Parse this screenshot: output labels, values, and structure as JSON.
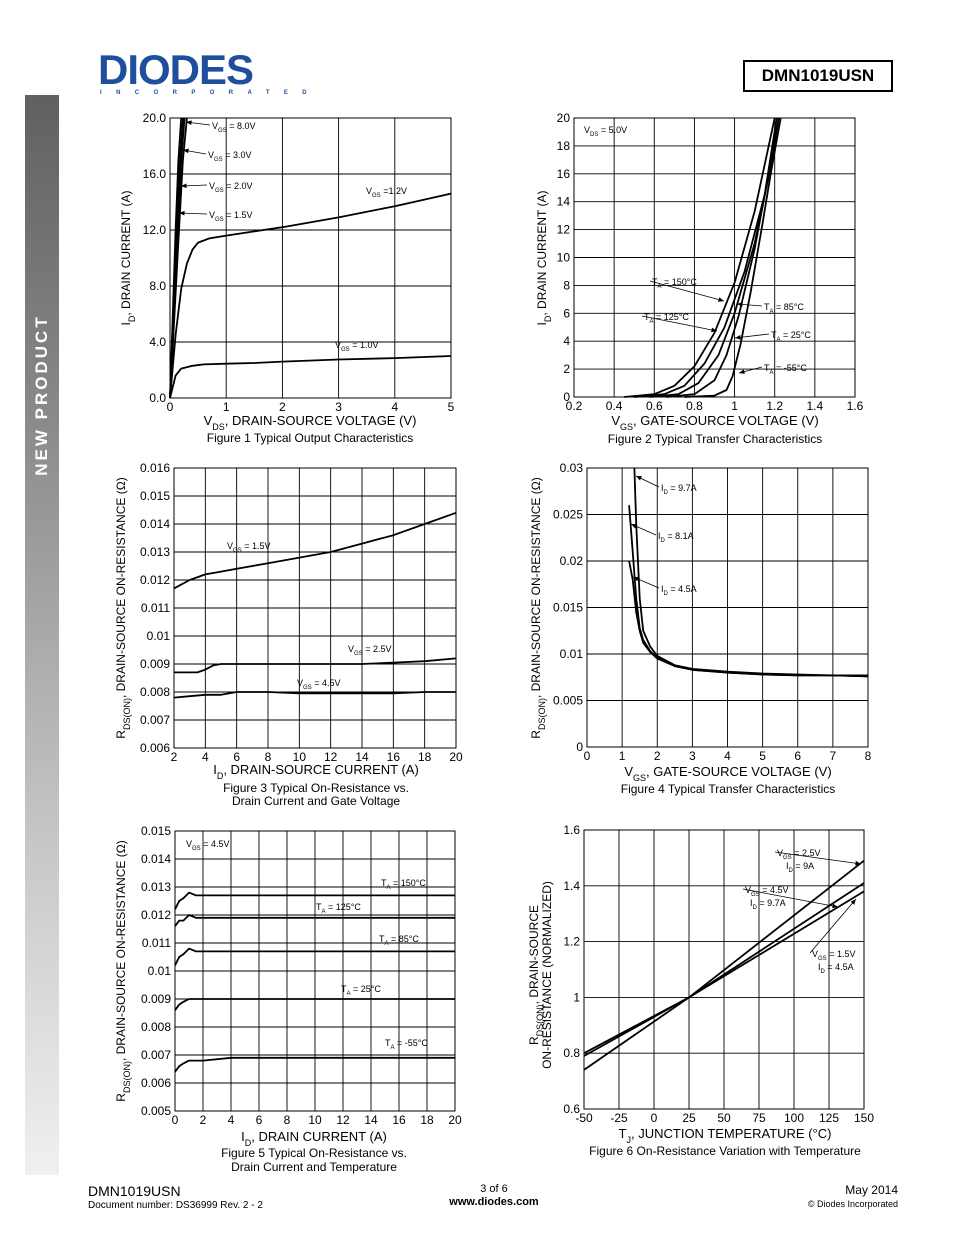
{
  "header": {
    "logo_text": "DIODES",
    "logo_sub": "INCORPORATED",
    "part_number": "DMN1019USN"
  },
  "sidebar": {
    "label": "NEW PRODUCT"
  },
  "colors": {
    "brand": "#1f4e9c",
    "ink": "#000000"
  },
  "chart_data": [
    {
      "id": "fig1",
      "type": "line",
      "title": "Figure 1 Typical Output Characteristics",
      "xlabel": "V_DS, DRAIN-SOURCE VOLTAGE (V)",
      "ylabel": "I_D, DRAIN CURRENT (A)",
      "xlim": [
        0,
        5
      ],
      "ylim": [
        0,
        20
      ],
      "xticks": [
        "0",
        "1",
        "2",
        "3",
        "4",
        "5"
      ],
      "yticks": [
        "0.0",
        "4.0",
        "8.0",
        "12.0",
        "16.0",
        "20.0"
      ],
      "series": [
        {
          "name": "V_GS = 8.0V",
          "x": [
            0,
            0.05,
            0.1,
            0.15,
            0.2
          ],
          "y": [
            0,
            6,
            12,
            17,
            20
          ]
        },
        {
          "name": "V_GS = 3.0V",
          "x": [
            0,
            0.06,
            0.12,
            0.18,
            0.23
          ],
          "y": [
            0,
            6,
            12,
            17,
            20
          ]
        },
        {
          "name": "V_GS = 2.0V",
          "x": [
            0,
            0.07,
            0.14,
            0.2,
            0.26
          ],
          "y": [
            0,
            6,
            12,
            17,
            20
          ]
        },
        {
          "name": "V_GS = 1.5V",
          "x": [
            0,
            0.08,
            0.16,
            0.23,
            0.3
          ],
          "y": [
            0,
            6,
            12,
            17,
            20
          ]
        },
        {
          "name": "V_GS =1.2V",
          "x": [
            0,
            0.1,
            0.2,
            0.3,
            0.4,
            0.5,
            0.7,
            1,
            1.5,
            2,
            3,
            4,
            5
          ],
          "y": [
            0,
            4.5,
            7.8,
            9.6,
            10.6,
            11.1,
            11.4,
            11.6,
            11.9,
            12.2,
            12.9,
            13.7,
            14.6
          ]
        },
        {
          "name": "V_GS = 1.0V",
          "x": [
            0,
            0.1,
            0.2,
            0.4,
            0.6,
            1,
            1.5,
            2,
            3,
            4,
            5
          ],
          "y": [
            0,
            1.6,
            2.1,
            2.3,
            2.4,
            2.45,
            2.5,
            2.6,
            2.75,
            2.85,
            3.0
          ]
        }
      ]
    },
    {
      "id": "fig2",
      "type": "line",
      "title": "Figure 2 Typical Transfer Characteristics",
      "xlabel": "V_GS, GATE-SOURCE VOLTAGE (V)",
      "ylabel": "I_D, DRAIN CURRENT (A)",
      "annotation": "V_DS = 5.0V",
      "xlim": [
        0.2,
        1.6
      ],
      "ylim": [
        0,
        20
      ],
      "xticks": [
        "0.2",
        "0.4",
        "0.6",
        "0.8",
        "1",
        "1.2",
        "1.4",
        "1.6"
      ],
      "yticks": [
        "0",
        "2",
        "4",
        "6",
        "8",
        "10",
        "12",
        "14",
        "16",
        "18",
        "20"
      ],
      "series": [
        {
          "name": "T_A = 150°C",
          "x": [
            0.45,
            0.6,
            0.7,
            0.8,
            0.9,
            1.0,
            1.1,
            1.2
          ],
          "y": [
            0,
            0.2,
            0.8,
            2.2,
            4.6,
            8.2,
            13.3,
            20
          ]
        },
        {
          "name": "T_A = 125°C",
          "x": [
            0.5,
            0.65,
            0.75,
            0.85,
            0.95,
            1.05,
            1.15,
            1.21
          ],
          "y": [
            0,
            0.2,
            0.8,
            2.4,
            5.0,
            9.0,
            14.5,
            20
          ]
        },
        {
          "name": "T_A = 85°C",
          "x": [
            0.58,
            0.72,
            0.82,
            0.92,
            1.0,
            1.1,
            1.18,
            1.22
          ],
          "y": [
            0,
            0.2,
            1.0,
            3.0,
            6.0,
            11.0,
            16.5,
            20
          ]
        },
        {
          "name": "T_A = 25°C",
          "x": [
            0.66,
            0.8,
            0.9,
            0.96,
            1.02,
            1.1,
            1.17,
            1.22
          ],
          "y": [
            0,
            0.2,
            1.2,
            3.0,
            5.8,
            10.6,
            16.0,
            20
          ]
        },
        {
          "name": "T_A = -55°C",
          "x": [
            0.75,
            0.9,
            0.96,
            0.99,
            1.03,
            1.08,
            1.14,
            1.18,
            1.23
          ],
          "y": [
            0,
            0.1,
            0.5,
            1.5,
            3.8,
            7.5,
            12.5,
            16.0,
            20
          ]
        }
      ]
    },
    {
      "id": "fig3",
      "type": "line",
      "title": "Figure 3 Typical On-Resistance vs.",
      "title2": "Drain Current and Gate Voltage",
      "xlabel": "I_D, DRAIN-SOURCE CURRENT (A)",
      "ylabel": "R_DS(ON), DRAIN-SOURCE ON-RESISTANCE (Ω)",
      "xlim": [
        2,
        20
      ],
      "ylim": [
        0.006,
        0.016
      ],
      "xticks": [
        "2",
        "4",
        "6",
        "8",
        "10",
        "12",
        "14",
        "16",
        "18",
        "20"
      ],
      "yticks": [
        "0.006",
        "0.007",
        "0.008",
        "0.009",
        "0.01",
        "0.011",
        "0.012",
        "0.013",
        "0.014",
        "0.015",
        "0.016"
      ],
      "series": [
        {
          "name": "V_GS = 1.5V",
          "x": [
            2,
            3,
            4,
            5,
            6,
            8,
            10,
            12,
            14,
            16,
            18,
            20
          ],
          "y": [
            0.0117,
            0.012,
            0.0122,
            0.0123,
            0.0124,
            0.0126,
            0.0128,
            0.013,
            0.0133,
            0.0136,
            0.014,
            0.0144
          ]
        },
        {
          "name": "V_GS = 2.5V",
          "x": [
            2,
            3,
            3.5,
            4,
            4.5,
            5,
            6,
            8,
            10,
            12,
            14,
            16,
            18,
            20
          ],
          "y": [
            0.0087,
            0.0087,
            0.0087,
            0.0088,
            0.00895,
            0.009,
            0.009,
            0.009,
            0.009,
            0.009,
            0.009,
            0.00905,
            0.0091,
            0.0092
          ]
        },
        {
          "name": "V_GS = 4.5V",
          "x": [
            2,
            3,
            4,
            5,
            6,
            8,
            10,
            12,
            14,
            16,
            18,
            20
          ],
          "y": [
            0.0078,
            0.00785,
            0.0079,
            0.0079,
            0.008,
            0.008,
            0.00795,
            0.00795,
            0.00795,
            0.00795,
            0.008,
            0.008
          ]
        }
      ]
    },
    {
      "id": "fig4",
      "type": "line",
      "title": "Figure 4 Typical Transfer Characteristics",
      "xlabel": "V_GS, GATE-SOURCE VOLTAGE (V)",
      "ylabel": "R_DS(ON), DRAIN-SOURCE ON-RESISTANCE (Ω)",
      "xlim": [
        0,
        8
      ],
      "ylim": [
        0,
        0.03
      ],
      "xticks": [
        "0",
        "1",
        "2",
        "3",
        "4",
        "5",
        "6",
        "7",
        "8"
      ],
      "yticks": [
        "0",
        "0.005",
        "0.01",
        "0.015",
        "0.02",
        "0.025",
        "0.03"
      ],
      "series": [
        {
          "name": "I_D = 9.7A",
          "x": [
            1.35,
            1.4,
            1.5,
            1.6,
            1.8,
            2.0,
            2.5,
            3,
            4,
            5,
            6,
            7,
            8
          ],
          "y": [
            0.03,
            0.024,
            0.016,
            0.0125,
            0.0108,
            0.0098,
            0.0088,
            0.0084,
            0.0081,
            0.0079,
            0.0078,
            0.0077,
            0.0077
          ]
        },
        {
          "name": "I_D = 8.1A",
          "x": [
            1.2,
            1.3,
            1.4,
            1.5,
            1.6,
            1.8,
            2.0,
            2.5,
            3,
            4,
            5,
            6,
            7,
            8
          ],
          "y": [
            0.026,
            0.021,
            0.016,
            0.0128,
            0.0115,
            0.0103,
            0.0096,
            0.0087,
            0.0083,
            0.008,
            0.0078,
            0.0077,
            0.0077,
            0.0076
          ]
        },
        {
          "name": "I_D = 4.5A",
          "x": [
            1.2,
            1.3,
            1.4,
            1.5,
            1.6,
            1.8,
            2.0,
            2.5,
            3,
            4,
            5,
            6,
            7,
            8
          ],
          "y": [
            0.02,
            0.018,
            0.0145,
            0.0125,
            0.0112,
            0.0102,
            0.0095,
            0.0087,
            0.0083,
            0.008,
            0.0078,
            0.0077,
            0.0077,
            0.0076
          ]
        }
      ]
    },
    {
      "id": "fig5",
      "type": "line",
      "title": "Figure 5 Typical On-Resistance vs.",
      "title2": "Drain Current and Temperature",
      "xlabel": "I_D, DRAIN CURRENT (A)",
      "ylabel": "R_DS(ON), DRAIN-SOURCE ON-RESISTANCE (Ω)",
      "annotation": "V_GS = 4.5V",
      "xlim": [
        0,
        20
      ],
      "ylim": [
        0.005,
        0.015
      ],
      "xticks": [
        "0",
        "2",
        "4",
        "6",
        "8",
        "10",
        "12",
        "14",
        "16",
        "18",
        "20"
      ],
      "yticks": [
        "0.005",
        "0.006",
        "0.007",
        "0.008",
        "0.009",
        "0.01",
        "0.011",
        "0.012",
        "0.013",
        "0.014",
        "0.015"
      ],
      "series": [
        {
          "name": "T_A = 150°C",
          "x": [
            0,
            0.3,
            0.6,
            1,
            1.5,
            2,
            4,
            6,
            8,
            10,
            12,
            14,
            16,
            18,
            20
          ],
          "y": [
            0.0122,
            0.0125,
            0.0126,
            0.0128,
            0.0127,
            0.0127,
            0.0127,
            0.0127,
            0.0127,
            0.0127,
            0.0127,
            0.0127,
            0.0127,
            0.0127,
            0.0127
          ]
        },
        {
          "name": "T_A = 125°C",
          "x": [
            0,
            0.3,
            0.6,
            1,
            1.5,
            2,
            4,
            6,
            8,
            10,
            12,
            14,
            16,
            18,
            20
          ],
          "y": [
            0.0116,
            0.0118,
            0.0118,
            0.012,
            0.0119,
            0.0119,
            0.0119,
            0.0119,
            0.0119,
            0.0119,
            0.0119,
            0.0119,
            0.0119,
            0.0119,
            0.0119
          ]
        },
        {
          "name": "T_A = 85°C",
          "x": [
            0,
            0.3,
            0.6,
            1,
            1.5,
            2,
            4,
            6,
            8,
            10,
            12,
            14,
            16,
            18,
            20
          ],
          "y": [
            0.0102,
            0.0105,
            0.0106,
            0.0108,
            0.0107,
            0.0107,
            0.0107,
            0.0107,
            0.0107,
            0.0107,
            0.0107,
            0.0107,
            0.0107,
            0.0107,
            0.0107
          ]
        },
        {
          "name": "T_A = 25°C",
          "x": [
            0,
            0.3,
            0.6,
            1,
            1.5,
            2,
            4,
            6,
            8,
            10,
            12,
            14,
            16,
            18,
            20
          ],
          "y": [
            0.0086,
            0.0088,
            0.0089,
            0.009,
            0.009,
            0.009,
            0.009,
            0.009,
            0.009,
            0.009,
            0.009,
            0.009,
            0.009,
            0.009,
            0.009
          ]
        },
        {
          "name": "T_A = -55°C",
          "x": [
            0,
            0.3,
            0.6,
            1,
            1.5,
            2,
            4,
            6,
            8,
            10,
            12,
            14,
            16,
            18,
            20
          ],
          "y": [
            0.0064,
            0.0066,
            0.0067,
            0.0068,
            0.0068,
            0.0068,
            0.0069,
            0.0069,
            0.0069,
            0.0069,
            0.0069,
            0.0069,
            0.0069,
            0.0069,
            0.0069
          ]
        }
      ]
    },
    {
      "id": "fig6",
      "type": "line",
      "title": "Figure 6 On-Resistance Variation with Temperature",
      "xlabel": "T_J, JUNCTION TEMPERATURE (°C)",
      "ylabel": "R_DS(ON), DRAIN-SOURCE ON-RESISTANCE (NORMALIZED)",
      "xlim": [
        -50,
        150
      ],
      "ylim": [
        0.6,
        1.6
      ],
      "xticks": [
        "-50",
        "-25",
        "0",
        "25",
        "50",
        "75",
        "100",
        "125",
        "150"
      ],
      "yticks": [
        "0.6",
        "0.8",
        "1",
        "1.2",
        "1.4",
        "1.6"
      ],
      "series": [
        {
          "name": "V_GS = 2.5V, I_D = 9A",
          "x": [
            -50,
            25,
            150
          ],
          "y": [
            0.74,
            1.0,
            1.49
          ]
        },
        {
          "name": "V_GS = 4.5V, I_D = 9.7A",
          "x": [
            -50,
            25,
            150
          ],
          "y": [
            0.79,
            1.0,
            1.41
          ]
        },
        {
          "name": "V_GS = 1.5V, I_D = 4.5A",
          "x": [
            -50,
            25,
            150
          ],
          "y": [
            0.8,
            1.0,
            1.38
          ]
        }
      ]
    }
  ],
  "footer": {
    "part_number": "DMN1019USN",
    "document": "Document number: DS36999  Rev. 2 - 2",
    "page": "3 of 6",
    "url": "www.diodes.com",
    "date": "May 2014",
    "copyright": "© Diodes Incorporated"
  }
}
